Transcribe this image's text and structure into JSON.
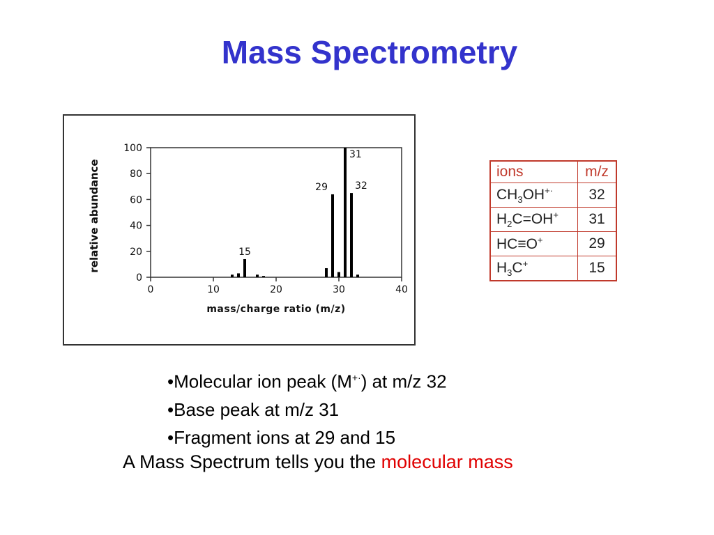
{
  "slide": {
    "title": "Mass Spectrometry"
  },
  "chart_data": {
    "type": "bar",
    "title": "",
    "xlabel": "mass/charge ratio (m/z)",
    "ylabel": "relative abundance",
    "xlim": [
      0,
      40
    ],
    "ylim": [
      0,
      100
    ],
    "x_ticks": [
      0,
      10,
      20,
      30,
      40
    ],
    "y_ticks": [
      0,
      20,
      40,
      60,
      80,
      100
    ],
    "grid": false,
    "x": [
      13,
      14,
      15,
      17,
      18,
      28,
      29,
      30,
      31,
      32,
      33
    ],
    "values": [
      2,
      3,
      14,
      2,
      1,
      7,
      64,
      4,
      100,
      65,
      2
    ],
    "peak_labels": [
      {
        "x": 15,
        "label": "15"
      },
      {
        "x": 29,
        "label": "29"
      },
      {
        "x": 31,
        "label": "31"
      },
      {
        "x": 32,
        "label": "32"
      }
    ],
    "bar_color": "#000000"
  },
  "ion_table": {
    "headers": [
      "ions",
      "m/z"
    ],
    "rows": [
      {
        "ion_parts": [
          [
            "CH",
            ""
          ],
          [
            "3",
            "sub"
          ],
          [
            "OH",
            ""
          ],
          [
            "+·",
            "sup"
          ]
        ],
        "mz": "32"
      },
      {
        "ion_parts": [
          [
            "H",
            ""
          ],
          [
            "2",
            "sub"
          ],
          [
            "C=OH",
            ""
          ],
          [
            "+",
            "sup"
          ]
        ],
        "mz": "31"
      },
      {
        "ion_parts": [
          [
            "HC≡O",
            ""
          ],
          [
            "+",
            "sup"
          ]
        ],
        "mz": "29"
      },
      {
        "ion_parts": [
          [
            "H",
            ""
          ],
          [
            "3",
            "sub"
          ],
          [
            "C",
            ""
          ],
          [
            "+",
            "sup"
          ]
        ],
        "mz": "15"
      }
    ],
    "border_color": "#c0392b"
  },
  "bullets": {
    "b1_pre": "•Molecular ion peak (M",
    "b1_sup": "+·",
    "b1_post": ") at m/z 32",
    "b2": "•Base peak at m/z 31",
    "b3": "•Fragment ions at 29 and 15"
  },
  "conclusion": {
    "lead": "A Mass Spectrum tells you the ",
    "highlight": "molecular mass",
    "highlight_color": "#e00000"
  }
}
